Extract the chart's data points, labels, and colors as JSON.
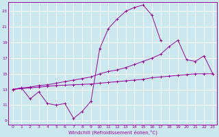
{
  "xlabel": "Windchill (Refroidissement éolien,°C)",
  "bg_color": "#cbe8ee",
  "grid_color": "#ffffff",
  "line_color": "#990099",
  "xlim": [
    -0.5,
    23.5
  ],
  "ylim": [
    8.5,
    24.2
  ],
  "xticks": [
    0,
    1,
    2,
    3,
    4,
    5,
    6,
    7,
    8,
    9,
    10,
    11,
    12,
    13,
    14,
    15,
    16,
    17,
    18,
    19,
    20,
    21,
    22,
    23
  ],
  "yticks": [
    9,
    11,
    13,
    15,
    17,
    19,
    21,
    23
  ],
  "series": [
    {
      "x": [
        0,
        1,
        2,
        3,
        4,
        5,
        6,
        7,
        8,
        9,
        10,
        11,
        12,
        13,
        14,
        15,
        16,
        17,
        18
      ],
      "y": [
        13.0,
        13.2,
        11.8,
        12.7,
        11.2,
        11.0,
        11.2,
        9.3,
        10.2,
        11.5,
        18.2,
        20.8,
        22.0,
        23.0,
        23.5,
        23.8,
        22.5,
        19.3,
        null
      ]
    },
    {
      "x": [
        0,
        1,
        2,
        3,
        4,
        5,
        6,
        7,
        8,
        9,
        10,
        11,
        12,
        13,
        14,
        15,
        16,
        17,
        18,
        19,
        20,
        21,
        22,
        23
      ],
      "y": [
        13.0,
        13.1,
        13.2,
        13.3,
        13.4,
        13.5,
        13.55,
        13.6,
        13.65,
        13.7,
        13.8,
        13.9,
        14.0,
        14.1,
        14.2,
        14.3,
        14.5,
        14.6,
        14.7,
        14.8,
        14.9,
        15.0,
        15.0,
        15.0
      ]
    },
    {
      "x": [
        0,
        1,
        2,
        3,
        4,
        5,
        6,
        7,
        8,
        9,
        10,
        11,
        12,
        13,
        14,
        15,
        16,
        17,
        18,
        19,
        20,
        21,
        22,
        23
      ],
      "y": [
        13.0,
        13.2,
        13.3,
        13.5,
        13.6,
        13.8,
        14.0,
        14.2,
        14.4,
        14.6,
        15.0,
        15.3,
        15.5,
        15.8,
        16.2,
        16.6,
        17.0,
        17.5,
        18.5,
        19.3,
        16.8,
        16.6,
        17.3,
        15.0
      ]
    }
  ]
}
